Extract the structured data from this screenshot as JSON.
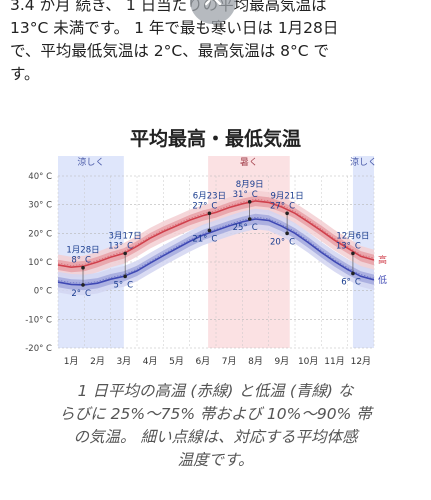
{
  "intro": {
    "lines": [
      "3.4 か月 続き、 1 日当たりの平均最高気温は",
      "13°C 未満です。 1 年で最も寒い日は 1月28日",
      "で、平均最低気温は 2°C、最高気温は 8°C で",
      "す。"
    ]
  },
  "scroll_up_button": {
    "icon": "chevron-up-icon"
  },
  "chart_data": {
    "type": "line",
    "title": "平均最高・最低気温",
    "categories": [
      "1月",
      "2月",
      "3月",
      "4月",
      "5月",
      "6月",
      "7月",
      "8月",
      "9月",
      "10月",
      "11月",
      "12月"
    ],
    "yticks": [
      {
        "value": 40,
        "label": "40° C"
      },
      {
        "value": 30,
        "label": "30° C"
      },
      {
        "value": 20,
        "label": "20° C"
      },
      {
        "value": 10,
        "label": "10° C"
      },
      {
        "value": 0,
        "label": "0° C"
      },
      {
        "value": -10,
        "label": "-10° C"
      },
      {
        "value": -20,
        "label": "-20° C"
      }
    ],
    "ylim": [
      -20,
      40
    ],
    "x_domain": [
      0,
      12
    ],
    "grid": true,
    "seasons": [
      {
        "label": "涼しく",
        "from": 0,
        "to": 2.5,
        "color": "#dfe6fb",
        "text_color": "#4a5aa8"
      },
      {
        "label": "暑く",
        "from": 5.7,
        "to": 8.8,
        "color": "#fbe1e3",
        "text_color": "#a64550"
      },
      {
        "label": "涼しく",
        "from": 11.2,
        "to": 12,
        "color": "#dfe6fb",
        "text_color": "#4a5aa8"
      }
    ],
    "series": [
      {
        "name": "高",
        "color": "#d0404c",
        "band": "#e8a0a6",
        "band_outer": "#f3cfd2",
        "x": [
          0,
          0.5,
          1,
          1.5,
          2,
          2.5,
          3,
          3.5,
          4,
          4.5,
          5,
          5.5,
          6,
          6.5,
          7,
          7.5,
          8,
          8.5,
          9,
          9.5,
          10,
          10.5,
          11,
          11.5,
          12
        ],
        "values": [
          9,
          8.2,
          8.6,
          10,
          11.7,
          13,
          15.5,
          18.3,
          20.6,
          22.6,
          24.6,
          26.2,
          27.3,
          29,
          30.3,
          31.3,
          30.8,
          29.2,
          27,
          24,
          20.9,
          17.6,
          14.8,
          12,
          10.7
        ]
      },
      {
        "name": "低",
        "color": "#3f49b4",
        "band": "#a3a9dd",
        "band_outer": "#d2d5f1",
        "x": [
          0,
          0.5,
          1,
          1.5,
          2,
          2.5,
          3,
          3.5,
          4,
          4.5,
          5,
          5.5,
          6,
          6.5,
          7,
          7.5,
          8,
          8.5,
          9,
          9.5,
          10,
          10.5,
          11,
          11.5,
          12
        ],
        "values": [
          3,
          2.2,
          2,
          2.6,
          4,
          5,
          6.9,
          9.6,
          12.2,
          14.7,
          17.2,
          19.4,
          21,
          22.6,
          24,
          25,
          24.5,
          22.5,
          20,
          16.8,
          13.4,
          10.2,
          7.4,
          5,
          3.8
        ]
      }
    ],
    "annotations": [
      {
        "date": "1月28日",
        "x": 0.95,
        "high": "8°",
        "low": "2°",
        "high_value": 8,
        "low_value": 2
      },
      {
        "date": "3月17日",
        "x": 2.55,
        "high": "13°",
        "low": "5°",
        "high_value": 13,
        "low_value": 5
      },
      {
        "date": "6月23日",
        "x": 5.75,
        "high": "27°",
        "low": "21°",
        "high_value": 27,
        "low_value": 21
      },
      {
        "date": "8月9日",
        "x": 7.28,
        "high": "31°",
        "low": "25°",
        "high_value": 31,
        "low_value": 25
      },
      {
        "date": "9月21日",
        "x": 8.7,
        "high": "27°",
        "low": "20°",
        "high_value": 27,
        "low_value": 20
      },
      {
        "date": "12月6日",
        "x": 11.2,
        "high": "13°",
        "low": "6°",
        "high_value": 13,
        "low_value": 6
      }
    ],
    "unit": "C",
    "series_label_high": "高",
    "series_label_low": "低"
  },
  "caption": {
    "lines": [
      "1 日平均の高温 (赤線) と低温 (青線) な",
      "らびに 25%～75% 帯および 10%～90% 帯",
      "の気温。 細い点線は、対応する平均体感",
      "温度です。"
    ]
  }
}
